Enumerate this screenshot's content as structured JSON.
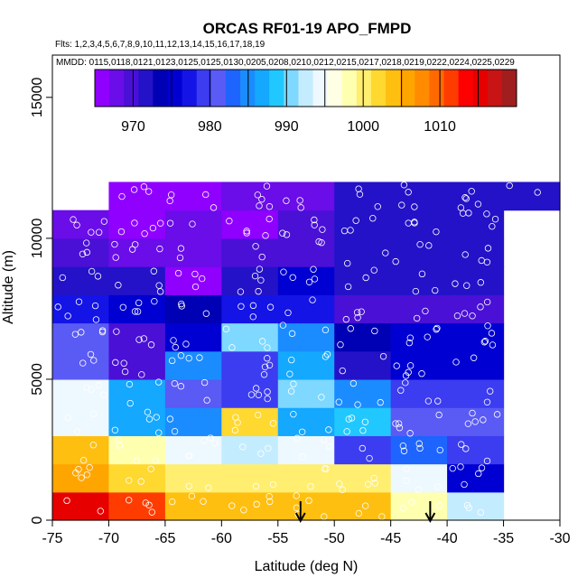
{
  "chart_data": {
    "type": "heatmap",
    "title": "ORCAS RF01-19 APO_FMPD",
    "flights_label": "Flts: 1,2,3,4,5,6,7,8,9,10,11,12,13,14,15,16,17,18,19",
    "dates_label": "MMDD: 0115,0118,0121,0123,0125,0125,0130,0205,0208,0210,0212,0215,0217,0218,0219,0222,0224,0225,0229",
    "xlabel": "Latitude (deg N)",
    "ylabel": "Altitude (m)",
    "xlim": [
      -75,
      -30
    ],
    "ylim": [
      0,
      16500
    ],
    "x_ticks": [
      -75,
      -70,
      -65,
      -60,
      -55,
      -50,
      -45,
      -40,
      -35,
      -30
    ],
    "y_ticks": [
      0,
      5000,
      10000,
      15000
    ],
    "colorbar": {
      "min": 965,
      "max": 1020,
      "ticks": [
        970,
        980,
        990,
        1000,
        1010
      ],
      "colors": [
        "#8f00ff",
        "#6a0de8",
        "#4a10d6",
        "#2412c8",
        "#0000b4",
        "#0000d2",
        "#1414e6",
        "#3c3cf0",
        "#5a5af5",
        "#1e64ff",
        "#1a8cff",
        "#14a8ff",
        "#20c8ff",
        "#7ed8ff",
        "#c4ecff",
        "#eef8ff",
        "#ffffe6",
        "#ffffb0",
        "#ffee70",
        "#ffd830",
        "#ffbf10",
        "#ffa500",
        "#ff8c00",
        "#ff6a00",
        "#ff3c00",
        "#ff0000",
        "#e60000",
        "#c81414",
        "#a01e1e"
      ]
    },
    "bins": {
      "lat_edges": [
        -75,
        -70,
        -65,
        -60,
        -55,
        -50,
        -45,
        -40,
        -35,
        -30
      ],
      "alt_edges": [
        0,
        1000,
        2000,
        3000,
        4000,
        5000,
        6000,
        7000,
        8000,
        9000,
        10000,
        11000,
        12000
      ]
    },
    "cells": [
      [
        1016,
        1012,
        1004,
        1003,
        1004,
        1004,
        999,
        993,
        null
      ],
      [
        1006,
        1002,
        1001,
        1000,
        1000,
        1001,
        994,
        975,
        null
      ],
      [
        1004,
        998,
        995,
        992,
        995,
        980,
        983,
        979,
        null
      ],
      [
        994,
        986,
        984,
        1002,
        987,
        989,
        982,
        982,
        null
      ],
      [
        994,
        986,
        982,
        979,
        990,
        985,
        979,
        979,
        null
      ],
      [
        982,
        970,
        985,
        979,
        987,
        972,
        976,
        976,
        null
      ],
      [
        982,
        970,
        976,
        990,
        984,
        974,
        976,
        976,
        null
      ],
      [
        978,
        976,
        974,
        978,
        977,
        970,
        970,
        970,
        null
      ],
      [
        972,
        972,
        965,
        972,
        976,
        972,
        972,
        972,
        null
      ],
      [
        970,
        968,
        968,
        969,
        970,
        972,
        972,
        972,
        null
      ],
      [
        967,
        966,
        967,
        966,
        970,
        972,
        972,
        972,
        null
      ],
      [
        null,
        966,
        966,
        967,
        968,
        972,
        972,
        972,
        972
      ]
    ],
    "arrows_lat": [
      -53,
      -41.5
    ]
  }
}
